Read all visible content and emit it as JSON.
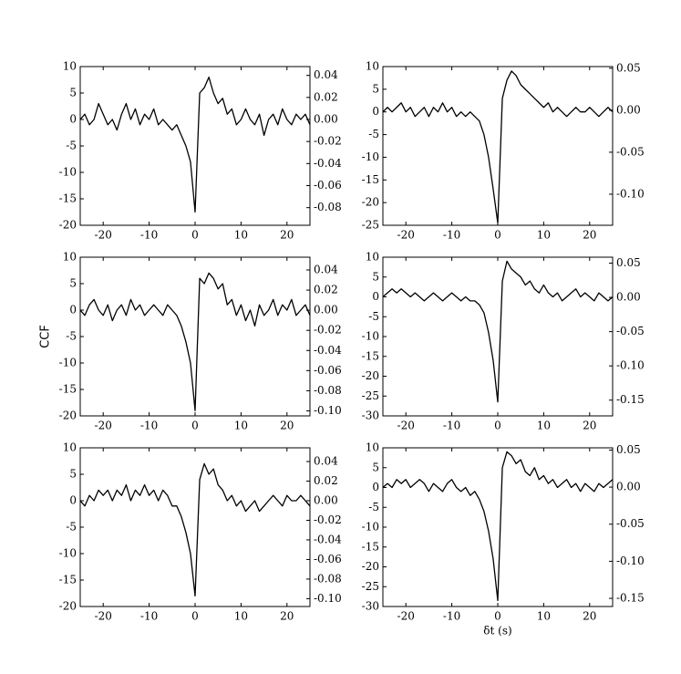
{
  "chart_data": [
    {
      "type": "line",
      "xlim": [
        -25,
        25
      ],
      "xticks": [
        -20,
        -10,
        0,
        10,
        20
      ],
      "ylim": [
        -20,
        10
      ],
      "yticks": [
        -20,
        -15,
        -10,
        -5,
        0,
        5,
        10
      ],
      "y2lim": [
        -0.096,
        0.048
      ],
      "y2ticks": [
        -0.08,
        -0.06,
        -0.04,
        -0.02,
        {
          "value": 0,
          "label": "0.00"
        },
        0.02,
        0.04
      ],
      "x": [
        -25,
        -24,
        -23,
        -22,
        -21,
        -20,
        -19,
        -18,
        -17,
        -16,
        -15,
        -14,
        -13,
        -12,
        -11,
        -10,
        -9,
        -8,
        -7,
        -6,
        -5,
        -4,
        -3,
        -2,
        -1,
        0,
        1,
        2,
        3,
        4,
        5,
        6,
        7,
        8,
        9,
        10,
        11,
        12,
        13,
        14,
        15,
        16,
        17,
        18,
        19,
        20,
        21,
        22,
        23,
        24,
        25
      ],
      "series": [
        {
          "color": "#000000",
          "values": [
            0,
            1,
            -1,
            0,
            3,
            1,
            -1,
            0,
            -2,
            1,
            3,
            0,
            2,
            -1,
            1,
            0,
            2,
            -1,
            0,
            -1,
            -2,
            -1,
            -3,
            -5,
            -8,
            -17.5,
            5,
            6,
            8,
            5,
            3,
            4,
            1,
            2,
            -1,
            0,
            2,
            0,
            -1,
            1,
            -3,
            0,
            1,
            -1,
            2,
            0,
            -1,
            1,
            0,
            1,
            -1
          ]
        }
      ]
    },
    {
      "type": "line",
      "xlim": [
        -25,
        25
      ],
      "xticks": [
        -20,
        -10,
        0,
        10,
        20
      ],
      "ylim": [
        -25,
        10
      ],
      "yticks": [
        -25,
        -20,
        -15,
        -10,
        -5,
        0,
        5,
        10
      ],
      "y2lim": [
        -0.137,
        0.052
      ],
      "y2ticks": [
        {
          "value": -0.1,
          "label": "-0.10"
        },
        -0.05,
        {
          "value": 0,
          "label": "0.00"
        },
        0.05
      ],
      "x": [
        -25,
        -24,
        -23,
        -22,
        -21,
        -20,
        -19,
        -18,
        -17,
        -16,
        -15,
        -14,
        -13,
        -12,
        -11,
        -10,
        -9,
        -8,
        -7,
        -6,
        -5,
        -4,
        -3,
        -2,
        -1,
        0,
        1,
        2,
        3,
        4,
        5,
        6,
        7,
        8,
        9,
        10,
        11,
        12,
        13,
        14,
        15,
        16,
        17,
        18,
        19,
        20,
        21,
        22,
        23,
        24,
        25
      ],
      "series": [
        {
          "color": "#000000",
          "values": [
            0,
            1,
            0,
            1,
            2,
            0,
            1,
            -1,
            0,
            1,
            -1,
            1,
            0,
            2,
            0,
            1,
            -1,
            0,
            -1,
            0,
            -1,
            -2,
            -5,
            -10,
            -17,
            -24.5,
            3,
            7,
            9,
            8,
            6,
            5,
            4,
            3,
            2,
            1,
            2,
            0,
            1,
            0,
            -1,
            0,
            1,
            0,
            0,
            1,
            0,
            -1,
            0,
            1,
            0
          ]
        }
      ]
    },
    {
      "type": "line",
      "xlim": [
        -25,
        25
      ],
      "xticks": [
        -20,
        -10,
        0,
        10,
        20
      ],
      "ylim": [
        -20,
        10
      ],
      "yticks": [
        -20,
        -15,
        -10,
        -5,
        0,
        5,
        10
      ],
      "ylabel": "CCF",
      "y2lim": [
        -0.105,
        0.0527
      ],
      "y2ticks": [
        {
          "value": -0.1,
          "label": "-0.10"
        },
        -0.08,
        -0.06,
        -0.04,
        -0.02,
        {
          "value": 0,
          "label": "0.00"
        },
        0.02,
        0.04
      ],
      "x": [
        -25,
        -24,
        -23,
        -22,
        -21,
        -20,
        -19,
        -18,
        -17,
        -16,
        -15,
        -14,
        -13,
        -12,
        -11,
        -10,
        -9,
        -8,
        -7,
        -6,
        -5,
        -4,
        -3,
        -2,
        -1,
        0,
        1,
        2,
        3,
        4,
        5,
        6,
        7,
        8,
        9,
        10,
        11,
        12,
        13,
        14,
        15,
        16,
        17,
        18,
        19,
        20,
        21,
        22,
        23,
        24,
        25
      ],
      "series": [
        {
          "color": "#000000",
          "values": [
            0,
            -1,
            1,
            2,
            0,
            -1,
            1,
            -2,
            0,
            1,
            -1,
            2,
            0,
            1,
            -1,
            0,
            1,
            0,
            -1,
            1,
            0,
            -1,
            -3,
            -6,
            -10,
            -19,
            6,
            5,
            7,
            6,
            4,
            5,
            1,
            2,
            -1,
            1,
            -2,
            0,
            -3,
            1,
            -1,
            0,
            2,
            -1,
            1,
            0,
            2,
            -1,
            0,
            1,
            -1
          ]
        }
      ]
    },
    {
      "type": "line",
      "xlim": [
        -25,
        25
      ],
      "xticks": [
        -20,
        -10,
        0,
        10,
        20
      ],
      "ylim": [
        -30,
        10
      ],
      "yticks": [
        -30,
        -25,
        -20,
        -15,
        -10,
        -5,
        0,
        5,
        10
      ],
      "y2lim": [
        -0.173,
        0.0587
      ],
      "y2ticks": [
        -0.15,
        {
          "value": -0.1,
          "label": "-0.10"
        },
        -0.05,
        {
          "value": 0,
          "label": "0.00"
        },
        0.05
      ],
      "x": [
        -25,
        -24,
        -23,
        -22,
        -21,
        -20,
        -19,
        -18,
        -17,
        -16,
        -15,
        -14,
        -13,
        -12,
        -11,
        -10,
        -9,
        -8,
        -7,
        -6,
        -5,
        -4,
        -3,
        -2,
        -1,
        0,
        1,
        2,
        3,
        4,
        5,
        6,
        7,
        8,
        9,
        10,
        11,
        12,
        13,
        14,
        15,
        16,
        17,
        18,
        19,
        20,
        21,
        22,
        23,
        24,
        25
      ],
      "series": [
        {
          "color": "#000000",
          "values": [
            0,
            1,
            2,
            1,
            2,
            1,
            0,
            1,
            0,
            -1,
            0,
            1,
            0,
            -1,
            0,
            1,
            0,
            -1,
            0,
            -1,
            -1,
            -2,
            -4,
            -9,
            -16,
            -26.5,
            4,
            9,
            7,
            6,
            5,
            3,
            4,
            2,
            1,
            3,
            1,
            0,
            1,
            -1,
            0,
            1,
            2,
            0,
            1,
            0,
            -1,
            1,
            0,
            -1,
            0
          ]
        }
      ]
    },
    {
      "type": "line",
      "xlim": [
        -25,
        25
      ],
      "xticks": [
        -20,
        -10,
        0,
        10,
        20
      ],
      "ylim": [
        -20,
        10
      ],
      "yticks": [
        -20,
        -15,
        -10,
        -5,
        0,
        5,
        10
      ],
      "y2lim": [
        -0.108,
        0.054
      ],
      "y2ticks": [
        {
          "value": -0.1,
          "label": "-0.10"
        },
        -0.08,
        -0.06,
        -0.04,
        -0.02,
        {
          "value": 0,
          "label": "0.00"
        },
        0.02,
        0.04
      ],
      "x": [
        -25,
        -24,
        -23,
        -22,
        -21,
        -20,
        -19,
        -18,
        -17,
        -16,
        -15,
        -14,
        -13,
        -12,
        -11,
        -10,
        -9,
        -8,
        -7,
        -6,
        -5,
        -4,
        -3,
        -2,
        -1,
        0,
        1,
        2,
        3,
        4,
        5,
        6,
        7,
        8,
        9,
        10,
        11,
        12,
        13,
        14,
        15,
        16,
        17,
        18,
        19,
        20,
        21,
        22,
        23,
        24,
        25
      ],
      "series": [
        {
          "color": "#000000",
          "values": [
            0,
            -1,
            1,
            0,
            2,
            1,
            2,
            0,
            2,
            1,
            3,
            0,
            2,
            1,
            3,
            1,
            2,
            0,
            2,
            1,
            -1,
            -1,
            -3,
            -6,
            -10,
            -18,
            4,
            7,
            5,
            6,
            3,
            2,
            0,
            1,
            -1,
            0,
            -2,
            -1,
            0,
            -2,
            -1,
            0,
            1,
            0,
            -1,
            1,
            0,
            0,
            1,
            0,
            -1
          ]
        }
      ]
    },
    {
      "type": "line",
      "xlim": [
        -25,
        25
      ],
      "xticks": [
        -20,
        -10,
        0,
        10,
        20
      ],
      "ylim": [
        -30,
        10
      ],
      "yticks": [
        -30,
        -25,
        -20,
        -15,
        -10,
        -5,
        0,
        5,
        10
      ],
      "xlabel": "δt (s)",
      "y2lim": [
        -0.161,
        0.053
      ],
      "y2ticks": [
        -0.15,
        {
          "value": -0.1,
          "label": "-0.10"
        },
        -0.05,
        {
          "value": 0,
          "label": "0.00"
        },
        0.05
      ],
      "x": [
        -25,
        -24,
        -23,
        -22,
        -21,
        -20,
        -19,
        -18,
        -17,
        -16,
        -15,
        -14,
        -13,
        -12,
        -11,
        -10,
        -9,
        -8,
        -7,
        -6,
        -5,
        -4,
        -3,
        -2,
        -1,
        0,
        1,
        2,
        3,
        4,
        5,
        6,
        7,
        8,
        9,
        10,
        11,
        12,
        13,
        14,
        15,
        16,
        17,
        18,
        19,
        20,
        21,
        22,
        23,
        24,
        25
      ],
      "series": [
        {
          "color": "#000000",
          "values": [
            0,
            1,
            0,
            2,
            1,
            2,
            0,
            1,
            2,
            1,
            -1,
            1,
            0,
            -1,
            1,
            2,
            0,
            -1,
            0,
            -2,
            -1,
            -3,
            -6,
            -11,
            -18,
            -28.5,
            5,
            9,
            8,
            6,
            7,
            4,
            3,
            5,
            2,
            3,
            1,
            2,
            0,
            1,
            2,
            0,
            1,
            -1,
            1,
            0,
            -1,
            1,
            0,
            1,
            2
          ]
        }
      ]
    }
  ]
}
